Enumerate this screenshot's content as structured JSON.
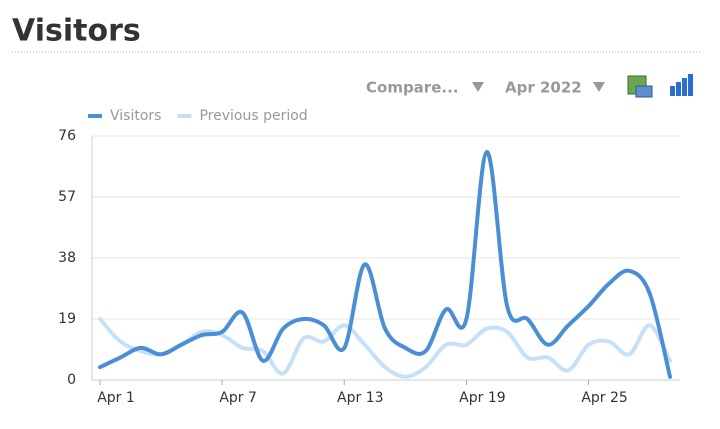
{
  "header": {
    "title": "Visitors"
  },
  "controls": {
    "compare": "Compare...",
    "period": "Apr 2022"
  },
  "chart_data": {
    "type": "line",
    "categories": [
      "Apr 1",
      null,
      null,
      null,
      null,
      null,
      "Apr 7",
      null,
      null,
      null,
      null,
      null,
      "Apr 13",
      null,
      null,
      null,
      null,
      null,
      "Apr 19",
      null,
      null,
      null,
      null,
      null,
      "Apr 25",
      null,
      null,
      null,
      null
    ],
    "series": [
      {
        "name": "Visitors",
        "color": "#4a8fd6",
        "values": [
          4,
          7,
          10,
          8,
          11,
          14,
          15,
          21,
          6,
          16,
          19,
          17,
          10,
          36,
          16,
          10,
          9,
          22,
          19,
          71,
          23,
          19,
          11,
          17,
          23,
          30,
          34,
          27,
          1
        ]
      },
      {
        "name": "Previous period",
        "color": "#c6e0f8",
        "values": [
          19,
          12,
          9,
          8,
          11,
          15,
          14,
          10,
          9,
          2,
          13,
          12,
          17,
          11,
          4,
          1,
          4,
          11,
          11,
          16,
          15,
          7,
          7,
          3,
          11,
          12,
          8,
          17,
          6
        ]
      }
    ],
    "ylim": [
      0,
      76
    ],
    "yticks": [
      0,
      19,
      38,
      57,
      76
    ],
    "grid": true,
    "legend": "top-left"
  }
}
